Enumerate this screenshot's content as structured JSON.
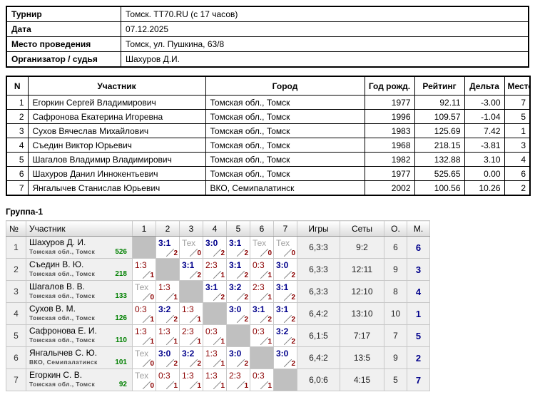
{
  "info_table": {
    "rows": [
      {
        "label": "Турнир",
        "value": "Томск. TT70.RU (с 17 часов)"
      },
      {
        "label": "Дата",
        "value": "07.12.2025"
      },
      {
        "label": "Место проведения",
        "value": "Томск, ул. Пушкина, 63/8"
      },
      {
        "label": "Организатор / судья",
        "value": "Шахуров Д.И."
      }
    ]
  },
  "participants": {
    "headers": [
      "N",
      "Участник",
      "Город",
      "Год рожд.",
      "Рейтинг",
      "Дельта",
      "Место"
    ],
    "rows": [
      {
        "n": "1",
        "name": "Егоркин Сергей Владимирович",
        "city": "Томская обл., Томск",
        "year": "1977",
        "rating": "92.11",
        "delta": "-3.00",
        "place": "7"
      },
      {
        "n": "2",
        "name": "Сафронова Екатерина Игоревна",
        "city": "Томская обл., Томск",
        "year": "1996",
        "rating": "109.57",
        "delta": "-1.04",
        "place": "5"
      },
      {
        "n": "3",
        "name": "Сухов Вячеслав Михайлович",
        "city": "Томская обл., Томск",
        "year": "1983",
        "rating": "125.69",
        "delta": "7.42",
        "place": "1"
      },
      {
        "n": "4",
        "name": "Съедин Виктор Юрьевич",
        "city": "Томская обл., Томск",
        "year": "1968",
        "rating": "218.15",
        "delta": "-3.81",
        "place": "3"
      },
      {
        "n": "5",
        "name": "Шагалов Владимир Владимирович",
        "city": "Томская обл., Томск",
        "year": "1982",
        "rating": "132.88",
        "delta": "3.10",
        "place": "4"
      },
      {
        "n": "6",
        "name": "Шахуров Данил Иннокентьевич",
        "city": "Томская обл., Томск",
        "year": "1977",
        "rating": "525.65",
        "delta": "0.00",
        "place": "6"
      },
      {
        "n": "7",
        "name": "Янгалычев Станислав Юрьевич",
        "city": "ВКО, Семипалатинск",
        "year": "2002",
        "rating": "100.56",
        "delta": "10.26",
        "place": "2"
      }
    ]
  },
  "group": {
    "title": "Группа-1",
    "headers": [
      "№",
      "Участник",
      "1",
      "2",
      "3",
      "4",
      "5",
      "6",
      "7",
      "Игры",
      "Сеты",
      "О.",
      "М."
    ],
    "rows": [
      {
        "num": "1",
        "name": "Шахуров Д. И.",
        "club": "Томская обл., Томск",
        "rating": "526",
        "cells": [
          {
            "type": "self"
          },
          {
            "type": "win",
            "score": "3:1",
            "pts": "2"
          },
          {
            "type": "tech",
            "score": "Тех",
            "pts": "0"
          },
          {
            "type": "win",
            "score": "3:0",
            "pts": "2"
          },
          {
            "type": "win",
            "score": "3:1",
            "pts": "2"
          },
          {
            "type": "tech",
            "score": "Тех",
            "pts": "0"
          },
          {
            "type": "tech",
            "score": "Тех",
            "pts": "0"
          }
        ],
        "games": "6,3:3",
        "sets": "9:2",
        "points": "6",
        "place": "6"
      },
      {
        "num": "2",
        "name": "Съедин В. Ю.",
        "club": "Томская обл., Томск",
        "rating": "218",
        "cells": [
          {
            "type": "loss",
            "score": "1:3",
            "pts": "1"
          },
          {
            "type": "self"
          },
          {
            "type": "win",
            "score": "3:1",
            "pts": "2"
          },
          {
            "type": "loss",
            "score": "2:3",
            "pts": "1"
          },
          {
            "type": "win",
            "score": "3:1",
            "pts": "2"
          },
          {
            "type": "loss",
            "score": "0:3",
            "pts": "1"
          },
          {
            "type": "win",
            "score": "3:0",
            "pts": "2"
          }
        ],
        "games": "6,3:3",
        "sets": "12:11",
        "points": "9",
        "place": "3"
      },
      {
        "num": "3",
        "name": "Шагалов В. В.",
        "club": "Томская обл., Томск",
        "rating": "133",
        "cells": [
          {
            "type": "tech",
            "score": "Тех",
            "pts": "0"
          },
          {
            "type": "loss",
            "score": "1:3",
            "pts": "1"
          },
          {
            "type": "self"
          },
          {
            "type": "win",
            "score": "3:1",
            "pts": "2"
          },
          {
            "type": "win",
            "score": "3:2",
            "pts": "2"
          },
          {
            "type": "loss",
            "score": "2:3",
            "pts": "1"
          },
          {
            "type": "win",
            "score": "3:1",
            "pts": "2"
          }
        ],
        "games": "6,3:3",
        "sets": "12:10",
        "points": "8",
        "place": "4"
      },
      {
        "num": "4",
        "name": "Сухов В. М.",
        "club": "Томская обл., Томск",
        "rating": "126",
        "cells": [
          {
            "type": "loss",
            "score": "0:3",
            "pts": "1"
          },
          {
            "type": "win",
            "score": "3:2",
            "pts": "2"
          },
          {
            "type": "loss",
            "score": "1:3",
            "pts": "1"
          },
          {
            "type": "self"
          },
          {
            "type": "win",
            "score": "3:0",
            "pts": "2"
          },
          {
            "type": "win",
            "score": "3:1",
            "pts": "2"
          },
          {
            "type": "win",
            "score": "3:1",
            "pts": "2"
          }
        ],
        "games": "6,4:2",
        "sets": "13:10",
        "points": "10",
        "place": "1"
      },
      {
        "num": "5",
        "name": "Сафронова Е. И.",
        "club": "Томская обл., Томск",
        "rating": "110",
        "cells": [
          {
            "type": "loss",
            "score": "1:3",
            "pts": "1"
          },
          {
            "type": "loss",
            "score": "1:3",
            "pts": "1"
          },
          {
            "type": "loss",
            "score": "2:3",
            "pts": "1"
          },
          {
            "type": "loss",
            "score": "0:3",
            "pts": "1"
          },
          {
            "type": "self"
          },
          {
            "type": "loss",
            "score": "0:3",
            "pts": "1"
          },
          {
            "type": "win",
            "score": "3:2",
            "pts": "2"
          }
        ],
        "games": "6,1:5",
        "sets": "7:17",
        "points": "7",
        "place": "5"
      },
      {
        "num": "6",
        "name": "Янгалычев С. Ю.",
        "club": "ВКО, Семипалатинск",
        "rating": "101",
        "cells": [
          {
            "type": "tech",
            "score": "Тех",
            "pts": "0"
          },
          {
            "type": "win",
            "score": "3:0",
            "pts": "2"
          },
          {
            "type": "win",
            "score": "3:2",
            "pts": "2"
          },
          {
            "type": "loss",
            "score": "1:3",
            "pts": "1"
          },
          {
            "type": "win",
            "score": "3:0",
            "pts": "2"
          },
          {
            "type": "self"
          },
          {
            "type": "win",
            "score": "3:0",
            "pts": "2"
          }
        ],
        "games": "6,4:2",
        "sets": "13:5",
        "points": "9",
        "place": "2"
      },
      {
        "num": "7",
        "name": "Егоркин С. В.",
        "club": "Томская обл., Томск",
        "rating": "92",
        "cells": [
          {
            "type": "tech",
            "score": "Тех",
            "pts": "0"
          },
          {
            "type": "loss",
            "score": "0:3",
            "pts": "1"
          },
          {
            "type": "loss",
            "score": "1:3",
            "pts": "1"
          },
          {
            "type": "loss",
            "score": "1:3",
            "pts": "1"
          },
          {
            "type": "loss",
            "score": "2:3",
            "pts": "1"
          },
          {
            "type": "loss",
            "score": "0:3",
            "pts": "1"
          },
          {
            "type": "self"
          }
        ],
        "games": "6,0:6",
        "sets": "4:15",
        "points": "5",
        "place": "7"
      }
    ]
  },
  "colors": {
    "win_score": "#00008B",
    "loss_score": "#8B0000",
    "tech_score": "#A0A0A0",
    "points_sub": "#8B0000",
    "rating_green": "#008000",
    "place_navy": "#00008B",
    "self_cell_gray": "#C0C0C0"
  }
}
